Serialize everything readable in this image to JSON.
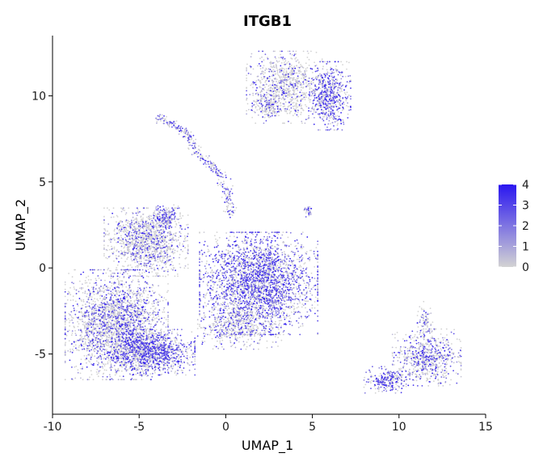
{
  "chart_data": {
    "type": "scatter",
    "title": "ITGB1",
    "xlabel": "UMAP_1",
    "ylabel": "UMAP_2",
    "xlim": [
      -10,
      15
    ],
    "ylim": [
      -8.5,
      13.5
    ],
    "x_ticks": [
      -10,
      -5,
      0,
      5,
      10,
      15
    ],
    "x_tick_labels": [
      "-10",
      "-5",
      "0",
      "5",
      "10",
      "15"
    ],
    "y_ticks": [
      -5,
      0,
      5,
      10
    ],
    "y_tick_labels": [
      "-5",
      "0",
      "5",
      "10"
    ],
    "grid": false,
    "legend_placement": "right",
    "color_scale": {
      "low_color": "#d3d3d3",
      "high_color": "#2a16f0",
      "min": 0,
      "max": 4,
      "ticks": [
        0,
        1,
        2,
        3,
        4
      ],
      "tick_labels": [
        "0",
        "1",
        "2",
        "3",
        "4"
      ]
    },
    "clusters": [
      {
        "cx": -6.3,
        "cy": -3.3,
        "sx": 1.35,
        "sy": 1.45,
        "n": 2600,
        "expr": 0.32
      },
      {
        "cx": -4.2,
        "cy": -4.9,
        "sx": 1.1,
        "sy": 0.6,
        "n": 1100,
        "expr": 0.55
      },
      {
        "cx": -4.6,
        "cy": 1.5,
        "sx": 1.1,
        "sy": 0.9,
        "n": 1300,
        "expr": 0.22
      },
      {
        "cx": -3.4,
        "cy": 3.0,
        "sx": 0.35,
        "sy": 0.3,
        "n": 160,
        "expr": 0.55
      },
      {
        "cx": 1.9,
        "cy": -0.9,
        "sx": 1.55,
        "sy": 1.35,
        "n": 2800,
        "expr": 0.55
      },
      {
        "cx": 0.8,
        "cy": -3.4,
        "sx": 1.1,
        "sy": 0.6,
        "n": 500,
        "expr": 0.22
      },
      {
        "cx": 3.4,
        "cy": 10.5,
        "sx": 1.0,
        "sy": 0.95,
        "n": 900,
        "expr": 0.2
      },
      {
        "cx": 6.0,
        "cy": 10.0,
        "sx": 0.55,
        "sy": 0.9,
        "n": 600,
        "expr": 0.6
      },
      {
        "cx": 2.3,
        "cy": 9.4,
        "sx": 0.35,
        "sy": 0.3,
        "n": 130,
        "expr": 0.3
      },
      {
        "cx": 11.6,
        "cy": -5.2,
        "sx": 0.9,
        "sy": 0.75,
        "n": 700,
        "expr": 0.35
      },
      {
        "cx": 9.3,
        "cy": -6.5,
        "sx": 0.6,
        "sy": 0.35,
        "n": 260,
        "expr": 0.55
      },
      {
        "cx": 11.5,
        "cy": -3.0,
        "sx": 0.2,
        "sy": 0.5,
        "n": 70,
        "expr": 0.3
      },
      {
        "cx": 4.8,
        "cy": 3.3,
        "sx": 0.15,
        "sy": 0.15,
        "n": 30,
        "expr": 0.4
      }
    ],
    "strand": {
      "points": [
        [
          -3.9,
          8.8
        ],
        [
          -2.2,
          7.8
        ],
        [
          -1.5,
          6.5
        ],
        [
          -0.4,
          5.6
        ],
        [
          0.1,
          4.4
        ],
        [
          0.3,
          3.0
        ]
      ],
      "n": 320,
      "width": 0.18,
      "expr": 0.5
    }
  }
}
